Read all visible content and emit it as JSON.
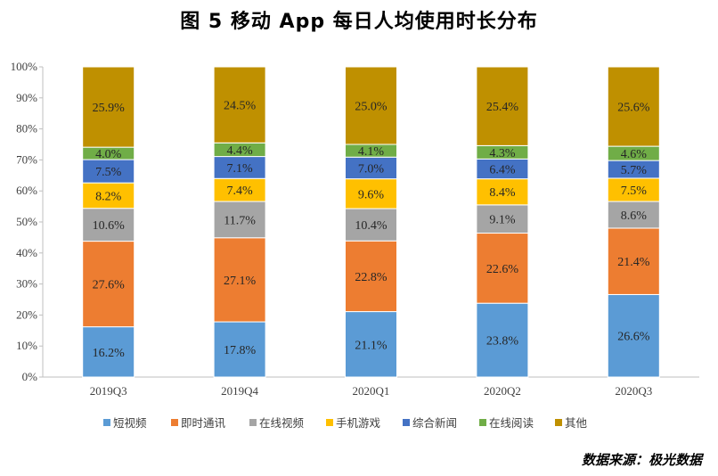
{
  "chart_data": {
    "type": "bar",
    "stacked": true,
    "title": "图 5   移动 App 每日人均使用时长分布",
    "categories": [
      "2019Q3",
      "2019Q4",
      "2020Q1",
      "2020Q2",
      "2020Q3"
    ],
    "ylim": [
      0,
      100
    ],
    "yticks": [
      "0%",
      "10%",
      "20%",
      "30%",
      "40%",
      "50%",
      "60%",
      "70%",
      "80%",
      "90%",
      "100%"
    ],
    "grid": false,
    "legend": "bottom",
    "series": [
      {
        "name": "短视频",
        "color": "#5B9BD5",
        "values": [
          16.2,
          17.8,
          21.1,
          23.8,
          26.6
        ]
      },
      {
        "name": "即时通讯",
        "color": "#ED7D31",
        "values": [
          27.6,
          27.1,
          22.8,
          22.6,
          21.4
        ]
      },
      {
        "name": "在线视频",
        "color": "#A5A5A5",
        "values": [
          10.6,
          11.7,
          10.4,
          9.1,
          8.6
        ]
      },
      {
        "name": "手机游戏",
        "color": "#FFC000",
        "values": [
          8.2,
          7.4,
          9.6,
          8.4,
          7.5
        ]
      },
      {
        "name": "综合新闻",
        "color": "#4472C4",
        "values": [
          7.5,
          7.1,
          7.0,
          6.4,
          5.7
        ]
      },
      {
        "name": "在线阅读",
        "color": "#70AD47",
        "values": [
          4.0,
          4.4,
          4.1,
          4.3,
          4.6
        ]
      },
      {
        "name": "其他",
        "color": "#BF9000",
        "values": [
          25.9,
          24.5,
          25.0,
          25.4,
          25.6
        ]
      }
    ],
    "source": "数据来源：极光数据"
  }
}
